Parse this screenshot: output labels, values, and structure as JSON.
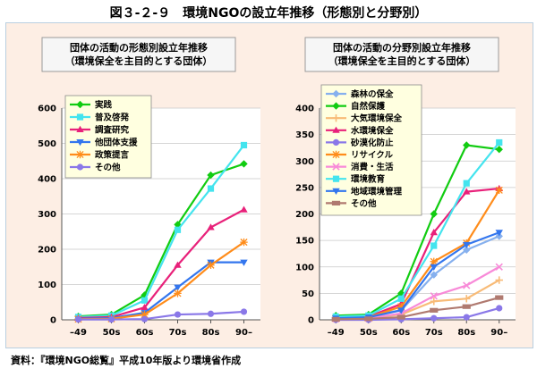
{
  "figure": {
    "title": "図３-２-９　環境NGOの設立年推移（形態別と分野別）",
    "source": "資料：『環境NGO総覧』平成10年版より環境省作成"
  },
  "chart_data": [
    {
      "type": "line",
      "title": [
        "団体の活動の形態別設立年推移",
        "（環境保全を主目的とする団体）"
      ],
      "categories": [
        "–49",
        "50s",
        "60s",
        "70s",
        "80s",
        "90–"
      ],
      "ylim": [
        0,
        600
      ],
      "yticks": [
        0,
        100,
        200,
        300,
        400,
        500,
        600
      ],
      "grid": true,
      "legend": "top-left",
      "series": [
        {
          "name": "実践",
          "color": "#11cc11",
          "marker": "diamond",
          "values": [
            10,
            15,
            70,
            270,
            410,
            442
          ]
        },
        {
          "name": "普及啓発",
          "color": "#44e4ee",
          "marker": "square",
          "values": [
            8,
            12,
            55,
            255,
            372,
            495
          ]
        },
        {
          "name": "調査研究",
          "color": "#e8217a",
          "marker": "triangle",
          "values": [
            5,
            8,
            35,
            155,
            262,
            312
          ]
        },
        {
          "name": "他団体支援",
          "color": "#3376ee",
          "marker": "triangle-down",
          "values": [
            3,
            5,
            20,
            92,
            163,
            163
          ]
        },
        {
          "name": "政策提言",
          "color": "#ff8c1a",
          "marker": "star",
          "values": [
            2,
            3,
            15,
            75,
            155,
            220
          ]
        },
        {
          "name": "その他",
          "color": "#8a78e8",
          "marker": "circle",
          "values": [
            1,
            1,
            2,
            15,
            17,
            23
          ]
        }
      ]
    },
    {
      "type": "line",
      "title": [
        "団体の活動の分野別設立年推移",
        "（環境保全を主目的とする団体）"
      ],
      "categories": [
        "–49",
        "50s",
        "60s",
        "70s",
        "80s",
        "90–"
      ],
      "ylim": [
        0,
        400
      ],
      "yticks": [
        0,
        50,
        100,
        150,
        200,
        250,
        300,
        350,
        400
      ],
      "grid": true,
      "legend": "top-left",
      "series": [
        {
          "name": "森林の保全",
          "color": "#86b0ee",
          "marker": "diamond",
          "values": [
            5,
            8,
            18,
            85,
            132,
            158
          ]
        },
        {
          "name": "自然保護",
          "color": "#11cc11",
          "marker": "diamond",
          "values": [
            8,
            10,
            50,
            200,
            330,
            322
          ]
        },
        {
          "name": "大気環境保全",
          "color": "#f8bb77",
          "marker": "plus",
          "values": [
            2,
            3,
            10,
            35,
            40,
            75
          ]
        },
        {
          "name": "水環境保全",
          "color": "#e8217a",
          "marker": "triangle",
          "values": [
            5,
            6,
            30,
            165,
            242,
            248
          ]
        },
        {
          "name": "砂漠化防止",
          "color": "#8a78e8",
          "marker": "circle",
          "values": [
            0,
            0,
            1,
            3,
            5,
            22
          ]
        },
        {
          "name": "リサイクル",
          "color": "#ff8c1a",
          "marker": "star",
          "values": [
            3,
            5,
            25,
            110,
            145,
            245
          ]
        },
        {
          "name": "消費・生活",
          "color": "#f88ad8",
          "marker": "x",
          "values": [
            2,
            3,
            12,
            45,
            65,
            100
          ]
        },
        {
          "name": "環境教育",
          "color": "#44e4ee",
          "marker": "square",
          "values": [
            6,
            8,
            40,
            140,
            258,
            335
          ]
        },
        {
          "name": "地域環境管理",
          "color": "#3376ee",
          "marker": "triangle-down",
          "values": [
            3,
            5,
            18,
            100,
            142,
            165
          ]
        },
        {
          "name": "その他",
          "color": "#b07a70",
          "marker": "rect",
          "values": [
            1,
            2,
            5,
            18,
            25,
            42
          ]
        }
      ]
    }
  ]
}
